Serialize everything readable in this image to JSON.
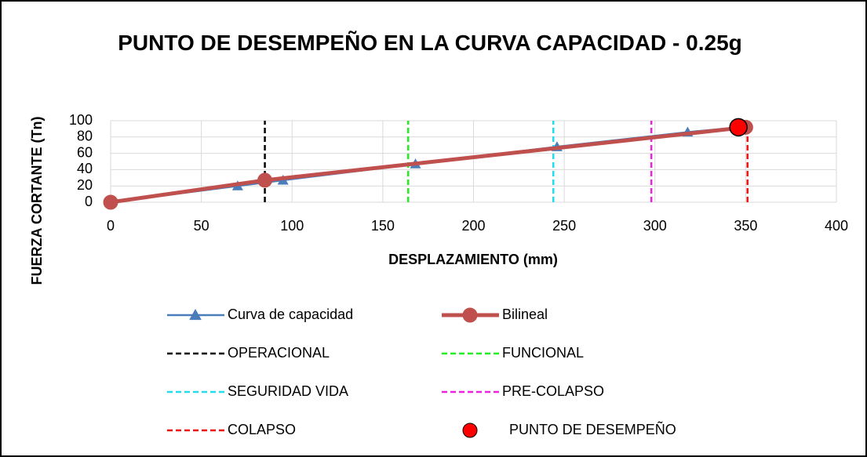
{
  "chart_data": {
    "type": "line",
    "title": "PUNTO DE DESEMPEÑO EN LA CURVA CAPACIDAD - 0.25g",
    "x_label": "DESPLAZAMIENTO (mm)",
    "y_label": "FUERZA CORTANTE (Tn)",
    "xlim": [
      0,
      400
    ],
    "xticks": [
      0,
      50,
      100,
      150,
      200,
      250,
      300,
      350,
      400
    ],
    "ylim": [
      0,
      100
    ],
    "yticks": [
      0,
      20,
      40,
      60,
      80,
      100
    ],
    "grid": true,
    "legend": "bottom",
    "series": [
      {
        "name": "Curva de capacidad",
        "color": "#4a7ebb",
        "kind": "line",
        "marker": "triangle",
        "dashed": false,
        "x": [
          0,
          70,
          95,
          168,
          246,
          318,
          347
        ],
        "values": [
          0,
          20,
          27,
          47,
          68,
          86,
          92
        ]
      },
      {
        "name": "Bilineal",
        "color": "#c0504d",
        "kind": "line",
        "marker": "circle",
        "dashed": false,
        "x": [
          0,
          85,
          350
        ],
        "values": [
          0,
          27,
          92
        ]
      },
      {
        "name": "OPERACIONAL",
        "color": "#000000",
        "kind": "line",
        "dashed": true,
        "x": [
          85,
          85
        ],
        "values": [
          0,
          100
        ]
      },
      {
        "name": "FUNCIONAL",
        "color": "#22ee22",
        "kind": "line",
        "dashed": true,
        "x": [
          164,
          164
        ],
        "values": [
          0,
          100
        ]
      },
      {
        "name": "SEGURIDAD VIDA",
        "color": "#22ddee",
        "kind": "line",
        "dashed": true,
        "x": [
          244,
          244
        ],
        "values": [
          0,
          100
        ]
      },
      {
        "name": "PRE-COLAPSO",
        "color": "#ee22dd",
        "kind": "line",
        "dashed": true,
        "x": [
          298,
          298
        ],
        "values": [
          0,
          100
        ]
      },
      {
        "name": "COLAPSO",
        "color": "#ee1111",
        "kind": "line",
        "dashed": true,
        "x": [
          351,
          351
        ],
        "values": [
          0,
          100
        ]
      },
      {
        "name": "PUNTO DE DESEMPEÑO",
        "color": "#ff0000",
        "kind": "scatter",
        "marker": "circle",
        "x": [
          346
        ],
        "values": [
          92
        ]
      }
    ]
  }
}
